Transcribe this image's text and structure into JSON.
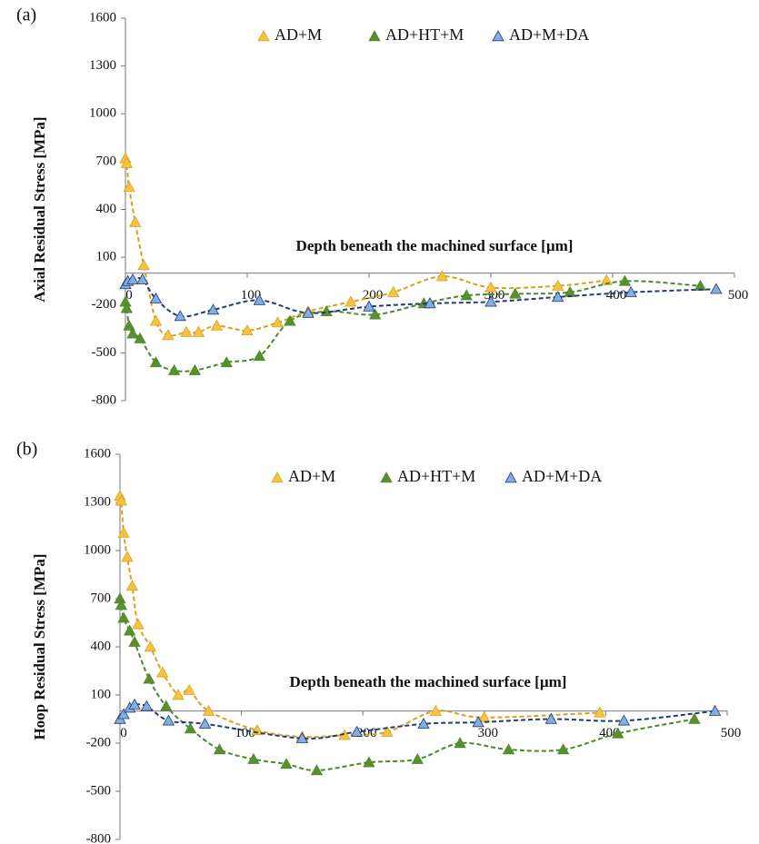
{
  "chart_data": [
    {
      "type": "scatter",
      "panel_label": "(a)",
      "y_label": "Axial Residual Stress [MPa]",
      "x_label": "Depth beneath the machined surface [µm]",
      "xlim": [
        0,
        500
      ],
      "xticks": [
        0,
        100,
        200,
        300,
        400,
        500
      ],
      "ylim": [
        -800,
        1600
      ],
      "yticks": [
        1600,
        1300,
        1000,
        700,
        400,
        100,
        -200,
        -500,
        -800
      ],
      "series": [
        {
          "name": "AD+M",
          "color": "#f5c242",
          "line_color": "#d9a21c",
          "x": [
            0,
            1,
            3,
            8,
            15,
            25,
            35,
            50,
            60,
            75,
            100,
            125,
            150,
            185,
            220,
            260,
            300,
            355,
            395
          ],
          "values": [
            720,
            690,
            540,
            320,
            50,
            -300,
            -390,
            -370,
            -370,
            -330,
            -360,
            -310,
            -240,
            -180,
            -120,
            -20,
            -90,
            -80,
            -45
          ]
        },
        {
          "name": "AD+HT+M",
          "color": "#5a8f2e",
          "line_color": "#4a8a2a",
          "x": [
            0,
            1,
            3,
            6,
            12,
            25,
            40,
            57,
            83,
            110,
            135,
            165,
            205,
            245,
            280,
            320,
            365,
            410,
            472
          ],
          "values": [
            -180,
            -220,
            -330,
            -380,
            -410,
            -560,
            -610,
            -610,
            -560,
            -520,
            -300,
            -240,
            -260,
            -190,
            -140,
            -130,
            -120,
            -50,
            -80
          ]
        },
        {
          "name": "AD+M+DA",
          "color": "#82aee0",
          "line_color": "#1f3d7a",
          "x": [
            0,
            2,
            6,
            14,
            25,
            45,
            72,
            110,
            150,
            200,
            250,
            300,
            355,
            415,
            485
          ],
          "values": [
            -70,
            -50,
            -40,
            -40,
            -160,
            -270,
            -230,
            -170,
            -250,
            -210,
            -190,
            -180,
            -150,
            -120,
            -100
          ]
        }
      ]
    },
    {
      "type": "scatter",
      "panel_label": "(b)",
      "y_label": "Hoop Residual Stress [MPa]",
      "x_label": "Depth beneath the machined surface [µm]",
      "xlim": [
        0,
        500
      ],
      "xticks": [
        0,
        100,
        200,
        300,
        400,
        500
      ],
      "ylim": [
        -800,
        1600
      ],
      "yticks": [
        1600,
        1300,
        1000,
        700,
        400,
        100,
        -200,
        -500,
        -800
      ],
      "series": [
        {
          "name": "AD+M",
          "color": "#f5c242",
          "line_color": "#d9a21c",
          "x": [
            0,
            1,
            3,
            6,
            10,
            15,
            25,
            35,
            48,
            57,
            73,
            113,
            150,
            185,
            220,
            260,
            300,
            395
          ],
          "values": [
            1340,
            1310,
            1110,
            960,
            780,
            540,
            400,
            240,
            100,
            130,
            0,
            -120,
            -160,
            -150,
            -130,
            0,
            -40,
            -10
          ]
        },
        {
          "name": "AD+HT+M",
          "color": "#5a8f2e",
          "line_color": "#4a8a2a",
          "x": [
            0,
            1,
            3,
            8,
            12,
            24,
            38,
            58,
            82,
            110,
            137,
            162,
            205,
            245,
            280,
            320,
            365,
            410,
            473
          ],
          "values": [
            700,
            660,
            580,
            500,
            430,
            200,
            30,
            -110,
            -240,
            -300,
            -330,
            -370,
            -320,
            -300,
            -200,
            -240,
            -240,
            -140,
            -50
          ]
        },
        {
          "name": "AD+M+DA",
          "color": "#82aee0",
          "line_color": "#1f3d7a",
          "x": [
            0,
            3,
            8,
            12,
            22,
            40,
            70,
            150,
            195,
            250,
            295,
            355,
            415,
            490
          ],
          "values": [
            -50,
            -20,
            20,
            40,
            30,
            -60,
            -80,
            -170,
            -130,
            -80,
            -70,
            -50,
            -60,
            0
          ]
        }
      ]
    }
  ]
}
